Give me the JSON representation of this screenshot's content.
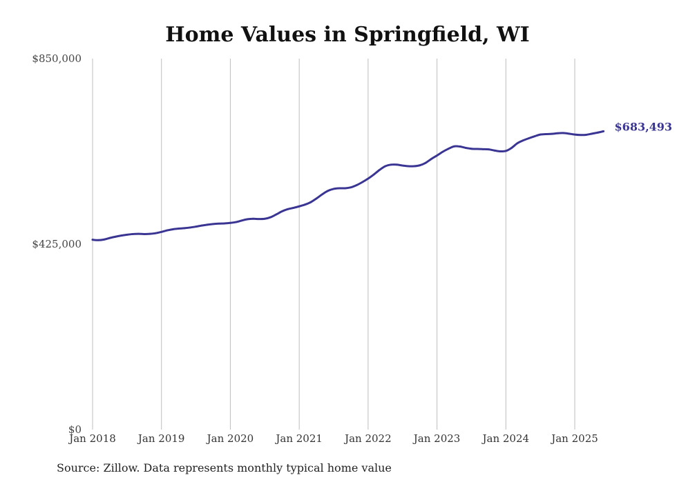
{
  "chart_data": {
    "type": "line",
    "title": "Home Values in Springfield, WI",
    "xlabel": "",
    "ylabel": "",
    "ylim": [
      0,
      850000
    ],
    "y_ticks": [
      {
        "value": 0,
        "label": "$0"
      },
      {
        "value": 425000,
        "label": "$425,000"
      },
      {
        "value": 850000,
        "label": "$850,000"
      }
    ],
    "x_ticks": [
      {
        "date": "2018-01",
        "label": "Jan 2018"
      },
      {
        "date": "2019-01",
        "label": "Jan 2019"
      },
      {
        "date": "2020-01",
        "label": "Jan 2020"
      },
      {
        "date": "2021-01",
        "label": "Jan 2021"
      },
      {
        "date": "2022-01",
        "label": "Jan 2022"
      },
      {
        "date": "2023-01",
        "label": "Jan 2023"
      },
      {
        "date": "2024-01",
        "label": "Jan 2024"
      },
      {
        "date": "2025-01",
        "label": "Jan 2025"
      }
    ],
    "x_range": [
      "2018-01",
      "2025-06"
    ],
    "grid": "vertical",
    "series": [
      {
        "color": "#3a3593",
        "end_label": "$683,493",
        "points": [
          [
            "2018-01",
            435000
          ],
          [
            "2018-02",
            434000
          ],
          [
            "2018-03",
            435500
          ],
          [
            "2018-04",
            439000
          ],
          [
            "2018-05",
            442000
          ],
          [
            "2018-06",
            444500
          ],
          [
            "2018-07",
            446500
          ],
          [
            "2018-08",
            448000
          ],
          [
            "2018-09",
            448500
          ],
          [
            "2018-10",
            448000
          ],
          [
            "2018-11",
            448500
          ],
          [
            "2018-12",
            450000
          ],
          [
            "2019-01",
            453000
          ],
          [
            "2019-02",
            456500
          ],
          [
            "2019-03",
            459000
          ],
          [
            "2019-04",
            460500
          ],
          [
            "2019-05",
            461500
          ],
          [
            "2019-06",
            463000
          ],
          [
            "2019-07",
            465000
          ],
          [
            "2019-08",
            467500
          ],
          [
            "2019-09",
            469500
          ],
          [
            "2019-10",
            471000
          ],
          [
            "2019-11",
            472000
          ],
          [
            "2019-12",
            472500
          ],
          [
            "2020-01",
            473500
          ],
          [
            "2020-02",
            475500
          ],
          [
            "2020-03",
            479000
          ],
          [
            "2020-04",
            482000
          ],
          [
            "2020-05",
            483000
          ],
          [
            "2020-06",
            482500
          ],
          [
            "2020-07",
            483000
          ],
          [
            "2020-08",
            486500
          ],
          [
            "2020-09",
            493000
          ],
          [
            "2020-10",
            500000
          ],
          [
            "2020-11",
            505000
          ],
          [
            "2020-12",
            508000
          ],
          [
            "2021-01",
            511500
          ],
          [
            "2021-02",
            515500
          ],
          [
            "2021-03",
            521000
          ],
          [
            "2021-04",
            529500
          ],
          [
            "2021-05",
            539000
          ],
          [
            "2021-06",
            547000
          ],
          [
            "2021-07",
            551500
          ],
          [
            "2021-08",
            553000
          ],
          [
            "2021-09",
            553000
          ],
          [
            "2021-10",
            555000
          ],
          [
            "2021-11",
            560000
          ],
          [
            "2021-12",
            567000
          ],
          [
            "2022-01",
            575000
          ],
          [
            "2022-02",
            584500
          ],
          [
            "2022-03",
            595000
          ],
          [
            "2022-04",
            603500
          ],
          [
            "2022-05",
            607000
          ],
          [
            "2022-06",
            607000
          ],
          [
            "2022-07",
            605000
          ],
          [
            "2022-08",
            603500
          ],
          [
            "2022-09",
            603500
          ],
          [
            "2022-10",
            605500
          ],
          [
            "2022-11",
            611000
          ],
          [
            "2022-12",
            620000
          ],
          [
            "2023-01",
            628000
          ],
          [
            "2023-02",
            636500
          ],
          [
            "2023-03",
            643500
          ],
          [
            "2023-04",
            649000
          ],
          [
            "2023-05",
            648500
          ],
          [
            "2023-06",
            645500
          ],
          [
            "2023-07",
            643500
          ],
          [
            "2023-08",
            643000
          ],
          [
            "2023-09",
            642500
          ],
          [
            "2023-10",
            642000
          ],
          [
            "2023-11",
            639500
          ],
          [
            "2023-12",
            637500
          ],
          [
            "2024-01",
            638500
          ],
          [
            "2024-02",
            645500
          ],
          [
            "2024-03",
            656000
          ],
          [
            "2024-04",
            662500
          ],
          [
            "2024-05",
            667500
          ],
          [
            "2024-06",
            672000
          ],
          [
            "2024-07",
            676000
          ],
          [
            "2024-08",
            677000
          ],
          [
            "2024-09",
            677500
          ],
          [
            "2024-10",
            679000
          ],
          [
            "2024-11",
            679500
          ],
          [
            "2024-12",
            678000
          ],
          [
            "2025-01",
            676000
          ],
          [
            "2025-02",
            675000
          ],
          [
            "2025-03",
            675500
          ],
          [
            "2025-04",
            678000
          ],
          [
            "2025-05",
            680500
          ],
          [
            "2025-06",
            683493
          ]
        ]
      }
    ]
  },
  "source_note": "Source: Zillow. Data represents monthly typical home value"
}
